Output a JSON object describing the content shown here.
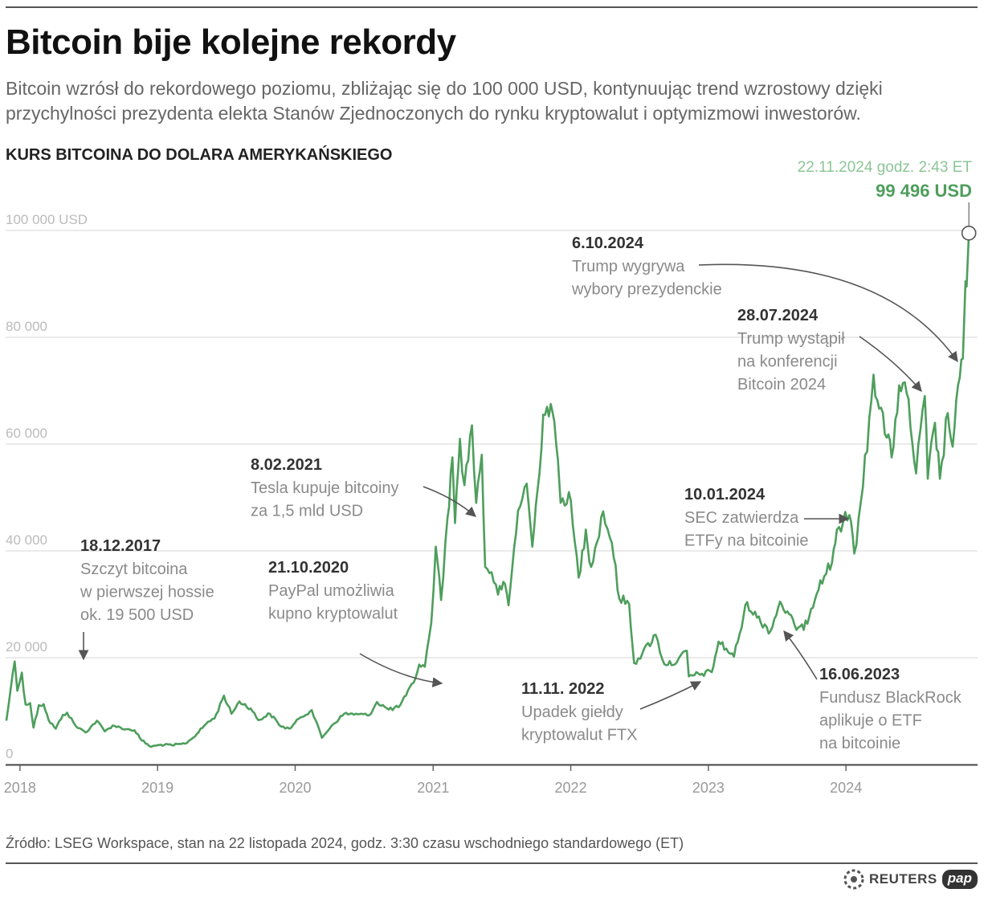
{
  "header": {
    "title": "Bitcoin bije kolejne rekordy",
    "subtitle": "Bitcoin wzrósł do rekordowego poziomu, zbliżając się do 100 000 USD, kontynuując trend wzrostowy dzięki przychylności prezydenta elekta Stanów Zjednoczonych do rynku kryptowalut i optymizmowi inwestorów."
  },
  "chart_data": {
    "type": "line",
    "title": "KURS BITCOINA DO DOLARA AMERYKAŃSKIEGO",
    "y_tick_labels": [
      "0",
      "20 000",
      "40 000",
      "60 000",
      "80 000",
      "100 000 USD"
    ],
    "y_tick_values": [
      0,
      20000,
      40000,
      60000,
      80000,
      100000
    ],
    "x_tick_labels": [
      "2018",
      "2019",
      "2020",
      "2021",
      "2022",
      "2023",
      "2024"
    ],
    "x_tick_values": [
      "2018-01-01",
      "2019-01-01",
      "2020-01-01",
      "2021-01-01",
      "2022-01-01",
      "2023-01-01",
      "2024-01-01"
    ],
    "x_range": [
      "2017-11-24",
      "2024-12-15"
    ],
    "ylim": [
      0,
      100000
    ],
    "grid": true,
    "line_color": "#4e9e5c",
    "series": [
      {
        "points": [
          [
            "2017-11-26",
            8200
          ],
          [
            "2017-12-08",
            14500
          ],
          [
            "2017-12-18",
            19300
          ],
          [
            "2017-12-25",
            13800
          ],
          [
            "2018-01-06",
            17200
          ],
          [
            "2018-01-16",
            11200
          ],
          [
            "2018-01-28",
            11500
          ],
          [
            "2018-02-06",
            6900
          ],
          [
            "2018-02-20",
            11100
          ],
          [
            "2018-03-05",
            11300
          ],
          [
            "2018-03-18",
            8300
          ],
          [
            "2018-04-06",
            6700
          ],
          [
            "2018-04-25",
            9300
          ],
          [
            "2018-05-06",
            9700
          ],
          [
            "2018-05-29",
            7200
          ],
          [
            "2018-06-24",
            6000
          ],
          [
            "2018-07-24",
            8200
          ],
          [
            "2018-08-14",
            6200
          ],
          [
            "2018-09-04",
            7300
          ],
          [
            "2018-10-10",
            6600
          ],
          [
            "2018-11-01",
            6400
          ],
          [
            "2018-11-20",
            4500
          ],
          [
            "2018-12-15",
            3300
          ],
          [
            "2019-01-10",
            3700
          ],
          [
            "2019-02-08",
            3600
          ],
          [
            "2019-03-15",
            3900
          ],
          [
            "2019-04-05",
            5000
          ],
          [
            "2019-05-15",
            8000
          ],
          [
            "2019-06-01",
            8600
          ],
          [
            "2019-06-26",
            12900
          ],
          [
            "2019-07-16",
            9500
          ],
          [
            "2019-08-06",
            11800
          ],
          [
            "2019-09-05",
            10500
          ],
          [
            "2019-09-25",
            8300
          ],
          [
            "2019-10-26",
            9500
          ],
          [
            "2019-11-25",
            7100
          ],
          [
            "2019-12-17",
            6700
          ],
          [
            "2020-01-15",
            8800
          ],
          [
            "2020-02-14",
            10200
          ],
          [
            "2020-03-12",
            5000
          ],
          [
            "2020-04-06",
            7200
          ],
          [
            "2020-05-10",
            9500
          ],
          [
            "2020-06-15",
            9400
          ],
          [
            "2020-07-15",
            9200
          ],
          [
            "2020-08-05",
            11700
          ],
          [
            "2020-09-05",
            10300
          ],
          [
            "2020-10-01",
            10700
          ],
          [
            "2020-10-21",
            12900
          ],
          [
            "2020-11-10",
            15300
          ],
          [
            "2020-11-25",
            18700
          ],
          [
            "2020-12-10",
            18300
          ],
          [
            "2020-12-27",
            26500
          ],
          [
            "2021-01-08",
            40800
          ],
          [
            "2021-01-22",
            30800
          ],
          [
            "2021-02-08",
            46200
          ],
          [
            "2021-02-21",
            57500
          ],
          [
            "2021-02-28",
            45200
          ],
          [
            "2021-03-13",
            61000
          ],
          [
            "2021-03-25",
            52300
          ],
          [
            "2021-04-14",
            63500
          ],
          [
            "2021-04-25",
            49000
          ],
          [
            "2021-05-10",
            58000
          ],
          [
            "2021-05-19",
            37000
          ],
          [
            "2021-06-05",
            36000
          ],
          [
            "2021-06-22",
            31800
          ],
          [
            "2021-07-06",
            34200
          ],
          [
            "2021-07-20",
            29800
          ],
          [
            "2021-08-14",
            47500
          ],
          [
            "2021-09-06",
            52600
          ],
          [
            "2021-09-21",
            40800
          ],
          [
            "2021-10-05",
            51500
          ],
          [
            "2021-10-20",
            65500
          ],
          [
            "2021-11-09",
            67500
          ],
          [
            "2021-11-28",
            57000
          ],
          [
            "2021-12-05",
            49000
          ],
          [
            "2021-12-27",
            51000
          ],
          [
            "2022-01-22",
            35000
          ],
          [
            "2022-02-10",
            44000
          ],
          [
            "2022-02-24",
            37000
          ],
          [
            "2022-03-28",
            47400
          ],
          [
            "2022-04-20",
            41500
          ],
          [
            "2022-05-10",
            31000
          ],
          [
            "2022-06-05",
            30000
          ],
          [
            "2022-06-18",
            19000
          ],
          [
            "2022-07-10",
            20800
          ],
          [
            "2022-08-14",
            24300
          ],
          [
            "2022-09-06",
            18800
          ],
          [
            "2022-10-10",
            19200
          ],
          [
            "2022-11-05",
            21300
          ],
          [
            "2022-11-10",
            16500
          ],
          [
            "2022-12-15",
            17000
          ],
          [
            "2023-01-10",
            17300
          ],
          [
            "2023-01-28",
            23000
          ],
          [
            "2023-03-10",
            20200
          ],
          [
            "2023-04-14",
            30400
          ],
          [
            "2023-05-10",
            27500
          ],
          [
            "2023-06-15",
            25000
          ],
          [
            "2023-07-10",
            30500
          ],
          [
            "2023-08-18",
            26000
          ],
          [
            "2023-09-11",
            25200
          ],
          [
            "2023-10-25",
            34500
          ],
          [
            "2023-11-25",
            37800
          ],
          [
            "2023-12-08",
            44000
          ],
          [
            "2024-01-10",
            46700
          ],
          [
            "2024-01-23",
            39500
          ],
          [
            "2024-02-15",
            52000
          ],
          [
            "2024-03-14",
            73000
          ],
          [
            "2024-04-18",
            61200
          ],
          [
            "2024-05-01",
            57500
          ],
          [
            "2024-05-21",
            71000
          ],
          [
            "2024-06-10",
            69500
          ],
          [
            "2024-07-05",
            54500
          ],
          [
            "2024-07-28",
            69000
          ],
          [
            "2024-08-05",
            53500
          ],
          [
            "2024-08-24",
            64000
          ],
          [
            "2024-09-06",
            53500
          ],
          [
            "2024-09-27",
            65800
          ],
          [
            "2024-10-10",
            59500
          ],
          [
            "2024-10-29",
            72500
          ],
          [
            "2024-11-06",
            76000
          ],
          [
            "2024-11-13",
            90500
          ],
          [
            "2024-11-16",
            89500
          ],
          [
            "2024-11-22",
            99496
          ]
        ]
      }
    ],
    "highlight": {
      "date": "2024-11-22",
      "value": 99496,
      "date_label": "22.11.2024 godz. 2:43 ET",
      "value_label": "99 496 USD"
    },
    "annotations": [
      {
        "date": "18.12.2017",
        "text": [
          "Szczyt bitcoina",
          "w pierwszej hossie",
          "ok. 19 500 USD"
        ]
      },
      {
        "date": "21.10.2020",
        "text": [
          "PayPal umożliwia",
          "kupno kryptowalut"
        ]
      },
      {
        "date": "8.02.2021",
        "text": [
          "Tesla kupuje bitcoiny",
          "za 1,5 mld USD"
        ]
      },
      {
        "date": "11.11. 2022",
        "text": [
          "Upadek giełdy",
          "kryptowalut FTX"
        ]
      },
      {
        "date": "16.06.2023",
        "text": [
          "Fundusz BlackRock",
          "aplikuje o ETF",
          "na bitcoinie"
        ]
      },
      {
        "date": "10.01.2024",
        "text": [
          "SEC zatwierdza",
          "ETFy na bitcoinie"
        ]
      },
      {
        "date": "28.07.2024",
        "text": [
          "Trump wystąpił",
          "na konferencji",
          "Bitcoin 2024"
        ]
      },
      {
        "date": "6.10.2024",
        "text": [
          "Trump wygrywa",
          "wybory prezydenckie"
        ]
      }
    ]
  },
  "footer": {
    "source": "Źródło: LSEG Workspace, stan na 22 listopada 2024, godz. 3:30 czasu wschodniego standardowego (ET)",
    "brand_reuters": "REUTERS",
    "brand_pap": "pap"
  }
}
